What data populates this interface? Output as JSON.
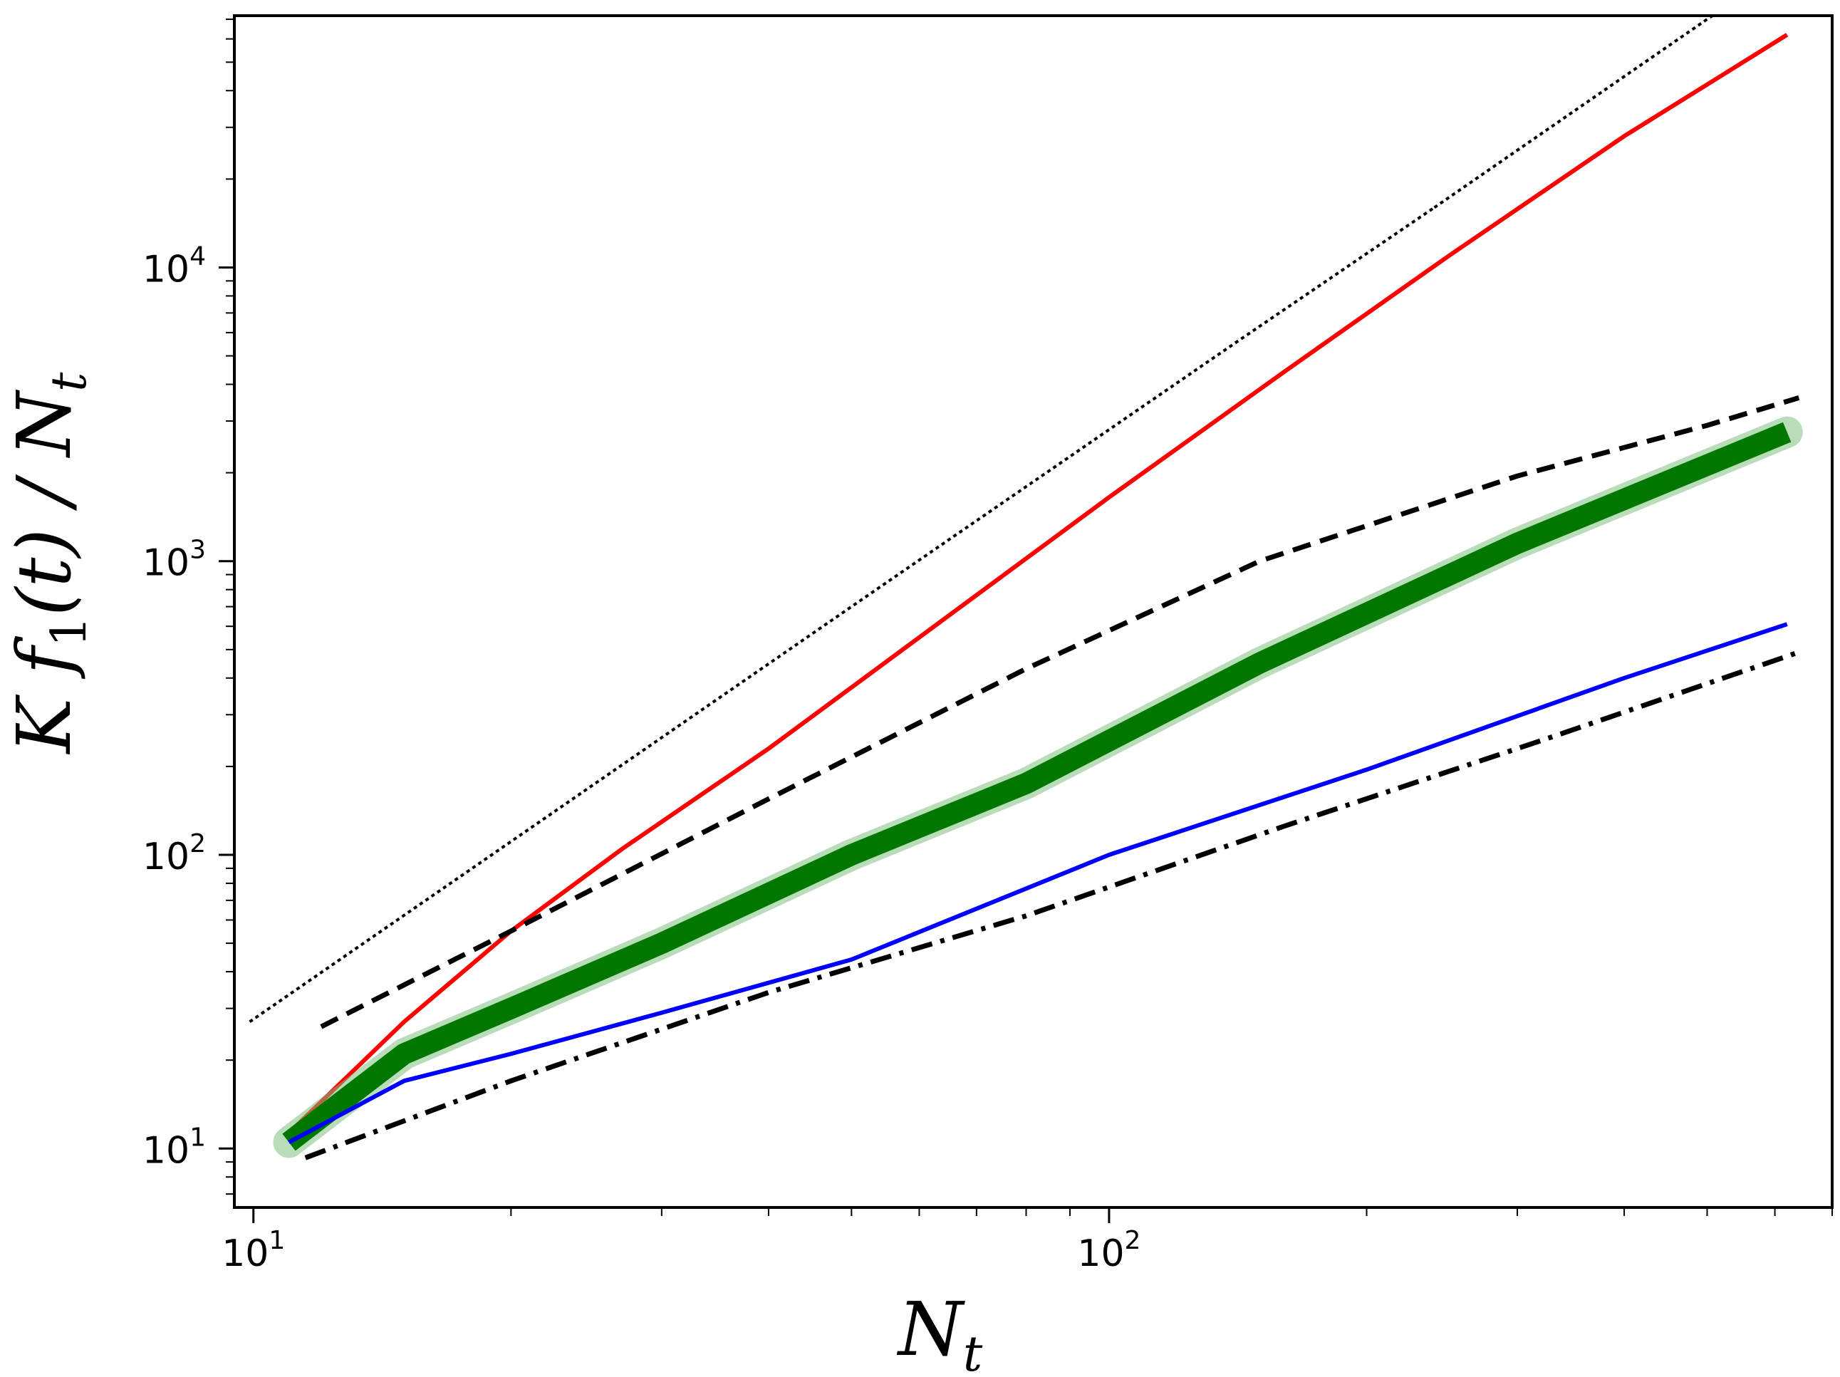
{
  "chart_data": {
    "type": "line",
    "title": "",
    "xlabel": "N",
    "xlabel_sub": "t",
    "ylabel": "K f",
    "ylabel_sub_f": "1",
    "ylabel_mid": "(t) / N",
    "ylabel_sub_n": "t",
    "xscale": "log",
    "yscale": "log",
    "xlim": [
      9.5,
      700
    ],
    "ylim": [
      6.3,
      72000
    ],
    "grid": false,
    "legend": "none",
    "x_ticks": [
      {
        "base": "10",
        "exp": "1",
        "value": 10
      },
      {
        "base": "10",
        "exp": "2",
        "value": 100
      }
    ],
    "y_ticks": [
      {
        "base": "10",
        "exp": "1",
        "value": 10
      },
      {
        "base": "10",
        "exp": "2",
        "value": 100
      },
      {
        "base": "10",
        "exp": "3",
        "value": 1000
      },
      {
        "base": "10",
        "exp": "4",
        "value": 10000
      }
    ],
    "series": [
      {
        "style": "dotted",
        "color": "#000000",
        "x": [
          9.9,
          50,
          140,
          240
        ],
        "y": [
          27,
          700,
          5500,
          16000
        ]
      },
      {
        "style": "dotted",
        "color": "#000000",
        "x": [
          240,
          500,
          690
        ],
        "y": [
          16000,
          70000,
          130000
        ]
      },
      {
        "style": "solid",
        "color": "#ff0000",
        "x": [
          11,
          15,
          20,
          27,
          40,
          60,
          100,
          160,
          250,
          400,
          620
        ],
        "y": [
          11.3,
          27,
          55,
          105,
          230,
          550,
          1650,
          4400,
          11000,
          28000,
          62000
        ]
      },
      {
        "style": "dashed",
        "color": "#000000",
        "x": [
          12,
          20,
          40,
          80,
          150,
          300,
          500,
          640
        ],
        "y": [
          26,
          55,
          155,
          430,
          1000,
          1950,
          2900,
          3600
        ]
      },
      {
        "style": "solid-band",
        "color": "#007800",
        "x": [
          11,
          15,
          20,
          30,
          50,
          80,
          150,
          300,
          620
        ],
        "y": [
          10.5,
          21,
          30,
          50,
          100,
          175,
          450,
          1150,
          2750
        ]
      },
      {
        "style": "solid",
        "color": "#0000ff",
        "x": [
          11,
          15,
          20,
          30,
          50,
          100,
          200,
          400,
          620
        ],
        "y": [
          10.5,
          17,
          21,
          29,
          44,
          100,
          195,
          400,
          610
        ]
      },
      {
        "style": "dashdot",
        "color": "#000000",
        "x": [
          11.5,
          20,
          40,
          80,
          160,
          320,
          640
        ],
        "y": [
          9.3,
          17,
          34,
          62,
          125,
          245,
          490
        ]
      }
    ]
  }
}
